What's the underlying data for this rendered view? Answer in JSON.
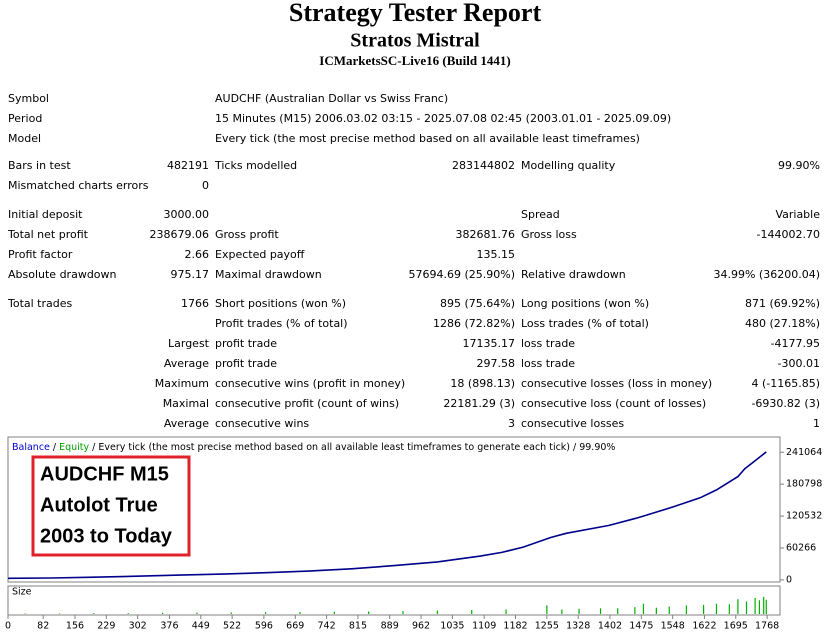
{
  "header": {
    "title": "Strategy Tester Report",
    "expert": "Stratos Mistral",
    "server": "ICMarketsSC-Live16 (Build 1441)"
  },
  "info": [
    [
      "Symbol",
      "AUDCHF (Australian Dollar vs Swiss Franc)"
    ],
    [
      "Period",
      "15 Minutes (M15) 2006.03.02 03:15 - 2025.07.08 02:45 (2003.01.01 - 2025.09.09)"
    ],
    [
      "Model",
      "Every tick (the most precise method based on all available least timeframes)"
    ]
  ],
  "table": {
    "rows": [
      [
        "Bars in test",
        "482191",
        "Ticks modelled",
        "283144802",
        "Modelling quality",
        "99.90%"
      ],
      [
        "Mismatched charts errors",
        "0",
        null,
        null,
        null,
        null
      ],
      [
        "Initial deposit",
        "3000.00",
        null,
        null,
        "Spread",
        "Variable"
      ],
      [
        "Total net profit",
        "238679.06",
        "Gross profit",
        "382681.76",
        "Gross loss",
        "-144002.70"
      ],
      [
        "Profit factor",
        "2.66",
        "Expected payoff",
        "135.15",
        null,
        null
      ],
      [
        "Absolute drawdown",
        "975.17",
        "Maximal drawdown",
        "57694.69 (25.90%)",
        "Relative drawdown",
        "34.99% (36200.04)"
      ],
      [
        "Total trades",
        "1766",
        "Short positions (won %)",
        "895 (75.64%)",
        "Long positions (won %)",
        "871 (69.92%)"
      ],
      [
        null,
        null,
        "Profit trades (% of total)",
        "1286 (72.82%)",
        "Loss trades (% of total)",
        "480 (27.18%)"
      ],
      [
        null,
        "Largest",
        "profit trade",
        "17135.17",
        "loss trade",
        "-4177.95"
      ],
      [
        null,
        "Average",
        "profit trade",
        "297.58",
        "loss trade",
        "-300.01"
      ],
      [
        null,
        "Maximum",
        "consecutive wins (profit in money)",
        "18 (898.13)",
        "consecutive losses (loss in money)",
        "4 (-1165.85)"
      ],
      [
        null,
        "Maximal",
        "consecutive profit (count of wins)",
        "22181.29 (3)",
        "consecutive loss (count of losses)",
        "-6930.82 (3)"
      ],
      [
        null,
        "Average",
        "consecutive wins",
        "3",
        "consecutive losses",
        "1"
      ]
    ]
  },
  "chart": {
    "type": "line",
    "legend": {
      "balance": "Balance",
      "equity": "Equity",
      "separator": "/",
      "model": "Every tick (the most precise method based on all available least timeframes to generate each tick)",
      "quality": "99.90%"
    },
    "annotation": [
      "AUDCHF M15",
      "Autolot True",
      "2003 to Today"
    ],
    "balance": {
      "color": "#00008b",
      "x": [
        0,
        100,
        200,
        300,
        400,
        500,
        600,
        700,
        800,
        900,
        1000,
        1100,
        1150,
        1200,
        1264,
        1300,
        1400,
        1470,
        1550,
        1612,
        1650,
        1700,
        1716,
        1740,
        1766
      ],
      "values": [
        3000,
        3500,
        5000,
        7000,
        9000,
        11000,
        13500,
        16500,
        21000,
        27000,
        34000,
        45000,
        52000,
        62000,
        80000,
        88000,
        103000,
        118000,
        138000,
        155000,
        170000,
        195000,
        210000,
        225000,
        241682
      ]
    },
    "equity_color": "#00a000",
    "ylim": [
      -4000,
      268000
    ],
    "yticks": [
      0,
      60266,
      120532,
      180798,
      241064
    ],
    "xlim": [
      0,
      1798
    ],
    "xticks": [
      0,
      82,
      156,
      229,
      302,
      376,
      449,
      522,
      596,
      669,
      742,
      815,
      889,
      962,
      1035,
      1109,
      1182,
      1255,
      1328,
      1402,
      1475,
      1548,
      1622,
      1695,
      1768
    ],
    "size": {
      "label": "Size",
      "color": "#00b000",
      "ylim": [
        0,
        3.5
      ],
      "x": [
        40,
        120,
        200,
        280,
        360,
        440,
        520,
        600,
        680,
        760,
        840,
        920,
        1000,
        1080,
        1160,
        1255,
        1290,
        1330,
        1380,
        1420,
        1460,
        1480,
        1510,
        1540,
        1580,
        1620,
        1650,
        1680,
        1700,
        1720,
        1740,
        1750,
        1760,
        1766
      ],
      "values": [
        0.1,
        0.1,
        0.15,
        0.15,
        0.2,
        0.25,
        0.25,
        0.3,
        0.35,
        0.4,
        0.45,
        0.5,
        0.6,
        0.7,
        0.8,
        1.5,
        0.8,
        0.9,
        1.0,
        1.0,
        1.2,
        1.8,
        1.1,
        1.3,
        1.5,
        1.6,
        1.8,
        1.7,
        2.6,
        2.2,
        2.8,
        2.4,
        3.0,
        2.5
      ]
    }
  }
}
